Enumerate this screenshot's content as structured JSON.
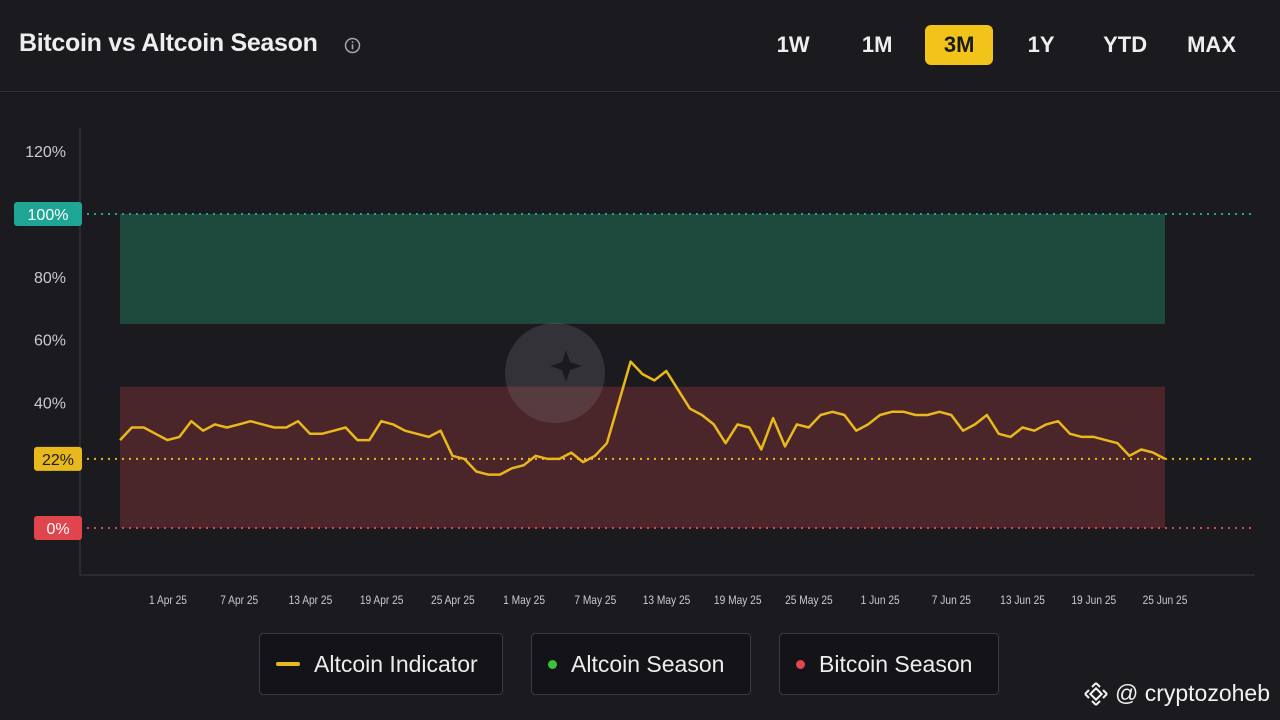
{
  "header": {
    "title": "Bitcoin vs Altcoin Season",
    "ranges": [
      "1W",
      "1M",
      "3M",
      "1Y",
      "YTD",
      "MAX"
    ],
    "active_range": "3M"
  },
  "chart_data": {
    "type": "line",
    "ylim": [
      0,
      120
    ],
    "y_ticks": [
      "120%",
      "80%",
      "60%",
      "40%"
    ],
    "y_tick_values": [
      120,
      80,
      60,
      40
    ],
    "x_labels": [
      "1 Apr 25",
      "7 Apr 25",
      "13 Apr 25",
      "19 Apr 25",
      "25 Apr 25",
      "1 May 25",
      "7 May 25",
      "13 May 25",
      "19 May 25",
      "25 May 25",
      "1 Jun 25",
      "7 Jun 25",
      "13 Jun 25",
      "19 Jun 25",
      "25 Jun 25"
    ],
    "zones": {
      "altcoin": [
        65,
        100
      ],
      "bitcoin": [
        0,
        45
      ]
    },
    "markers": [
      {
        "label": "100%",
        "value": 100,
        "color": "#1fa595"
      },
      {
        "label": "22%",
        "value": 22,
        "color": "#e8b81c"
      },
      {
        "label": "0%",
        "value": 0,
        "color": "#e0454d"
      }
    ],
    "series": [
      {
        "name": "Altcoin Indicator",
        "color": "#e8b81c",
        "x_start": "2025-03-27",
        "values": [
          28,
          32,
          32,
          30,
          28,
          29,
          34,
          31,
          33,
          32,
          33,
          34,
          33,
          32,
          32,
          34,
          30,
          30,
          31,
          32,
          28,
          28,
          34,
          33,
          31,
          30,
          29,
          31,
          23,
          22,
          18,
          17,
          17,
          19,
          20,
          23,
          22,
          22,
          24,
          21,
          23,
          27,
          40,
          53,
          49,
          47,
          50,
          44,
          38,
          36,
          33,
          27,
          33,
          32,
          25,
          35,
          26,
          33,
          32,
          36,
          37,
          36,
          31,
          33,
          36,
          37,
          37,
          36,
          36,
          37,
          36,
          31,
          33,
          36,
          30,
          29,
          32,
          31,
          33,
          34,
          30,
          29,
          29,
          28,
          27,
          23,
          25,
          24,
          22
        ]
      }
    ]
  },
  "legend": {
    "altcoin_indicator": "Altcoin Indicator",
    "altcoin_season": "Altcoin Season",
    "bitcoin_season": "Bitcoin Season"
  },
  "colors": {
    "accent": "#f2c419",
    "altcoin_zone": "#1e4a3d",
    "bitcoin_zone": "#4a2529",
    "altcoin_dot": "#3cc23a",
    "bitcoin_dot": "#e4464e"
  },
  "credit": {
    "handle": "@ cryptozoheb"
  }
}
